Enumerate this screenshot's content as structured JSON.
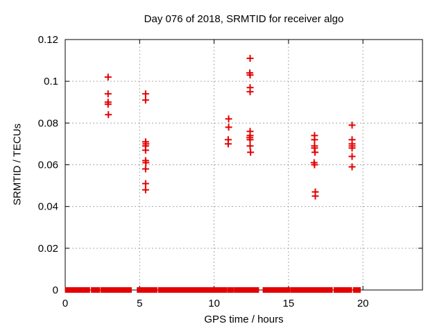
{
  "chart_data": {
    "type": "scatter",
    "title": "Day 076 of 2018, SRMTID for receiver algo",
    "xlabel": "GPS time / hours",
    "ylabel": "SRMTID / TECUs",
    "xlim": [
      0,
      24
    ],
    "ylim": [
      0,
      0.12
    ],
    "x_ticks": [
      {
        "v": 0,
        "label": "0"
      },
      {
        "v": 5,
        "label": "5"
      },
      {
        "v": 10,
        "label": "10"
      },
      {
        "v": 15,
        "label": "15"
      },
      {
        "v": 20,
        "label": "20"
      }
    ],
    "y_ticks": [
      {
        "v": 0,
        "label": "0"
      },
      {
        "v": 0.02,
        "label": "0.02"
      },
      {
        "v": 0.04,
        "label": "0.04"
      },
      {
        "v": 0.06,
        "label": "0.06"
      },
      {
        "v": 0.08,
        "label": "0.08"
      },
      {
        "v": 0.1,
        "label": "0.1"
      },
      {
        "v": 0.12,
        "label": "0.12"
      }
    ],
    "grid": true,
    "legend": "none",
    "marker": "plus",
    "marker_color": "#e30000",
    "grid_color": "#a8a8a8",
    "axis_color": "#000000",
    "background": "#ffffff",
    "series": [
      {
        "name": "SRMTID",
        "points": [
          [
            2.88,
            0.102
          ],
          [
            2.88,
            0.094
          ],
          [
            2.88,
            0.09
          ],
          [
            2.88,
            0.089
          ],
          [
            2.9,
            0.084
          ],
          [
            5.4,
            0.094
          ],
          [
            5.4,
            0.091
          ],
          [
            5.4,
            0.071
          ],
          [
            5.42,
            0.07
          ],
          [
            5.4,
            0.069
          ],
          [
            5.4,
            0.067
          ],
          [
            5.4,
            0.062
          ],
          [
            5.42,
            0.061
          ],
          [
            5.4,
            0.058
          ],
          [
            5.4,
            0.051
          ],
          [
            5.4,
            0.048
          ],
          [
            10.98,
            0.082
          ],
          [
            10.98,
            0.078
          ],
          [
            10.95,
            0.072
          ],
          [
            10.95,
            0.07
          ],
          [
            12.42,
            0.111
          ],
          [
            12.4,
            0.104
          ],
          [
            12.42,
            0.103
          ],
          [
            12.42,
            0.097
          ],
          [
            12.42,
            0.095
          ],
          [
            12.42,
            0.076
          ],
          [
            12.42,
            0.074
          ],
          [
            12.4,
            0.073
          ],
          [
            12.42,
            0.072
          ],
          [
            12.42,
            0.069
          ],
          [
            12.45,
            0.066
          ],
          [
            16.75,
            0.074
          ],
          [
            16.75,
            0.072
          ],
          [
            16.75,
            0.069
          ],
          [
            16.75,
            0.068
          ],
          [
            16.78,
            0.066
          ],
          [
            16.72,
            0.061
          ],
          [
            16.75,
            0.06
          ],
          [
            16.8,
            0.047
          ],
          [
            16.8,
            0.045
          ],
          [
            19.27,
            0.079
          ],
          [
            19.27,
            0.072
          ],
          [
            19.27,
            0.07
          ],
          [
            19.27,
            0.069
          ],
          [
            19.27,
            0.068
          ],
          [
            19.27,
            0.064
          ],
          [
            19.27,
            0.059
          ]
        ]
      }
    ],
    "zero_line_segments": [
      [
        0.05,
        1.6
      ],
      [
        1.8,
        2.28
      ],
      [
        2.45,
        3.05
      ],
      [
        3.17,
        3.65
      ],
      [
        3.78,
        4.4
      ],
      [
        4.88,
        5.33
      ],
      [
        5.45,
        6.12
      ],
      [
        6.3,
        10.82
      ],
      [
        10.97,
        11.25
      ],
      [
        11.4,
        12.33
      ],
      [
        12.4,
        12.95
      ],
      [
        13.33,
        13.5
      ],
      [
        13.58,
        13.73
      ],
      [
        13.8,
        13.87
      ],
      [
        13.93,
        14.0
      ],
      [
        14.1,
        15.05
      ],
      [
        15.2,
        16.73
      ],
      [
        16.85,
        17.9
      ],
      [
        18.1,
        19.2
      ],
      [
        19.4,
        19.78
      ]
    ]
  }
}
